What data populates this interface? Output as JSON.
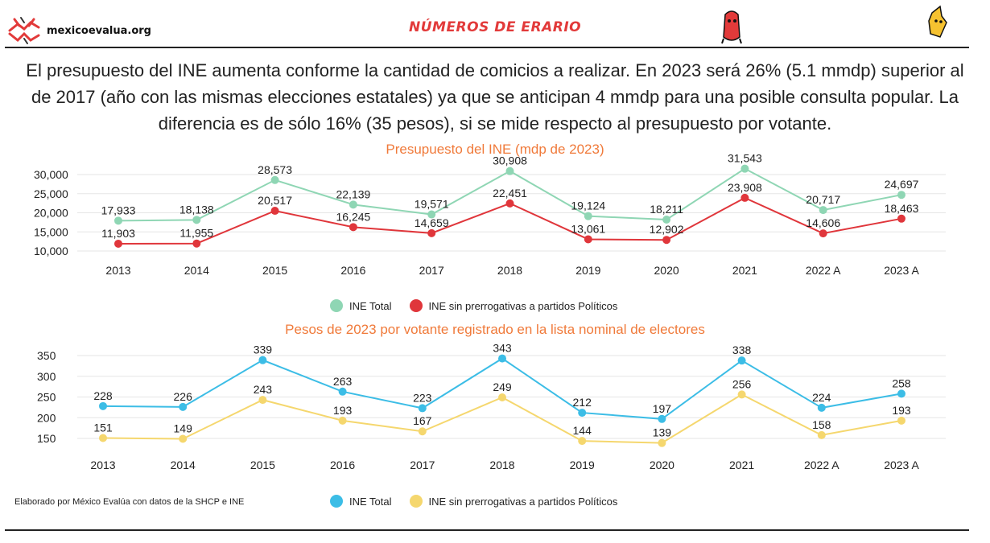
{
  "header": {
    "site": "mexicoevalua.org",
    "program": "NÚMEROS DE ERARIO"
  },
  "headline": "El presupuesto del INE aumenta conforme la cantidad de comicios a realizar. En 2023 será 26% (5.1 mmdp) superior al de 2017 (año con las mismas elecciones estatales) ya que se anticipan 4 mmdp para una posible consulta popular. La diferencia es de sólo 16% (35 pesos), si se mide respecto al presupuesto por votante.",
  "footer": {
    "source": "Elaborado por México Evalúa con datos de la SHCP e INE"
  },
  "colors": {
    "green": "#8fd6b4",
    "red": "#e0363b",
    "blue": "#3cbde6",
    "yellow": "#f5d76e",
    "title": "#f07a3a"
  },
  "chart_data": [
    {
      "type": "line",
      "title": "Presupuesto del INE (mdp de 2023)",
      "categories": [
        "2013",
        "2014",
        "2015",
        "2016",
        "2017",
        "2018",
        "2019",
        "2020",
        "2021",
        "2022 A",
        "2023 A"
      ],
      "y_ticks": [
        "30,000",
        "25,000",
        "20,000",
        "15,000",
        "10,000"
      ],
      "ylim": [
        10000,
        30000
      ],
      "series": [
        {
          "name": "INE Total",
          "color": "#8fd6b4",
          "values": [
            17933,
            18138,
            28573,
            22139,
            19571,
            30908,
            19124,
            18211,
            31543,
            20717,
            24697
          ],
          "labels": [
            "17,933",
            "18,138",
            "28,573",
            "22,139",
            "19,571",
            "30,908",
            "19,124",
            "18,211",
            "31,543",
            "20,717",
            "24,697"
          ]
        },
        {
          "name": "INE sin prerrogativas a partidos Políticos",
          "color": "#e0363b",
          "values": [
            11903,
            11955,
            20517,
            16245,
            14659,
            22451,
            13061,
            12902,
            23908,
            14606,
            18463
          ],
          "labels": [
            "11,903",
            "11,955",
            "20,517",
            "16,245",
            "14,659",
            "22,451",
            "13,061",
            "12,902",
            "23,908",
            "14,606",
            "18,463"
          ]
        }
      ]
    },
    {
      "type": "line",
      "title": "Pesos de 2023 por votante registrado en la lista nominal de electores",
      "categories": [
        "2013",
        "2014",
        "2015",
        "2016",
        "2017",
        "2018",
        "2019",
        "2020",
        "2021",
        "2022 A",
        "2023 A"
      ],
      "y_ticks": [
        "350",
        "300",
        "250",
        "200",
        "150"
      ],
      "ylim": [
        150,
        350
      ],
      "series": [
        {
          "name": "INE Total",
          "color": "#3cbde6",
          "values": [
            228,
            226,
            339,
            263,
            223,
            343,
            212,
            197,
            338,
            224,
            258
          ],
          "labels": [
            "228",
            "226",
            "339",
            "263",
            "223",
            "343",
            "212",
            "197",
            "338",
            "224",
            "258"
          ]
        },
        {
          "name": "INE sin prerrogativas a partidos Políticos",
          "color": "#f5d76e",
          "values": [
            151,
            149,
            243,
            193,
            167,
            249,
            144,
            139,
            256,
            158,
            193
          ],
          "labels": [
            "151",
            "149",
            "243",
            "193",
            "167",
            "249",
            "144",
            "139",
            "256",
            "158",
            "193"
          ]
        }
      ]
    }
  ]
}
